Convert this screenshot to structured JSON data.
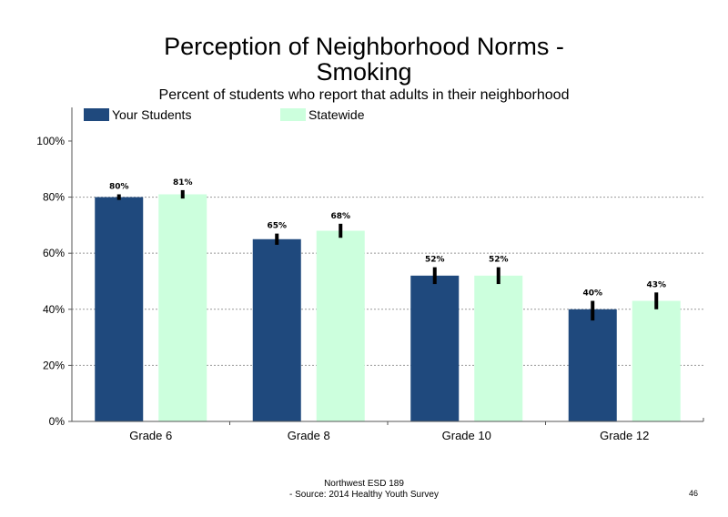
{
  "page": {
    "title_line1": "Perception of Neighborhood Norms -",
    "title_line2": "Smoking",
    "subtitle": "Percent of students who report that adults in their neighborhood",
    "footer_line1": "Northwest ESD  189",
    "footer_line2": "- Source: 2014 Healthy  Youth Survey",
    "page_number": "46"
  },
  "chart_data": {
    "type": "bar",
    "categories": [
      "Grade 6",
      "Grade 8",
      "Grade 10",
      "Grade 12"
    ],
    "series": [
      {
        "name": "Your Students",
        "color": "#1F497D",
        "values": [
          80,
          65,
          52,
          40
        ],
        "labels": [
          "80%",
          "65%",
          "52%",
          "40%"
        ],
        "error_low": [
          79,
          63,
          49,
          36
        ],
        "error_high": [
          81,
          67,
          55,
          43
        ]
      },
      {
        "name": "Statewide",
        "color": "#CCFFDD",
        "values": [
          81,
          68,
          52,
          43
        ],
        "labels": [
          "81%",
          "68%",
          "52%",
          "43%"
        ],
        "error_low": [
          79.5,
          65.5,
          49,
          40
        ],
        "error_high": [
          82.5,
          70.5,
          55,
          46
        ]
      }
    ],
    "ylim": [
      0,
      112
    ],
    "yticks": [
      {
        "value": 0,
        "label": "0%"
      },
      {
        "value": 20,
        "label": "20%"
      },
      {
        "value": 40,
        "label": "40%"
      },
      {
        "value": 60,
        "label": "60%"
      },
      {
        "value": 80,
        "label": "80%"
      },
      {
        "value": 100,
        "label": "100%"
      }
    ],
    "gridlines_at": [
      20,
      40,
      60,
      80
    ],
    "grid": true,
    "legend_position": "top"
  }
}
